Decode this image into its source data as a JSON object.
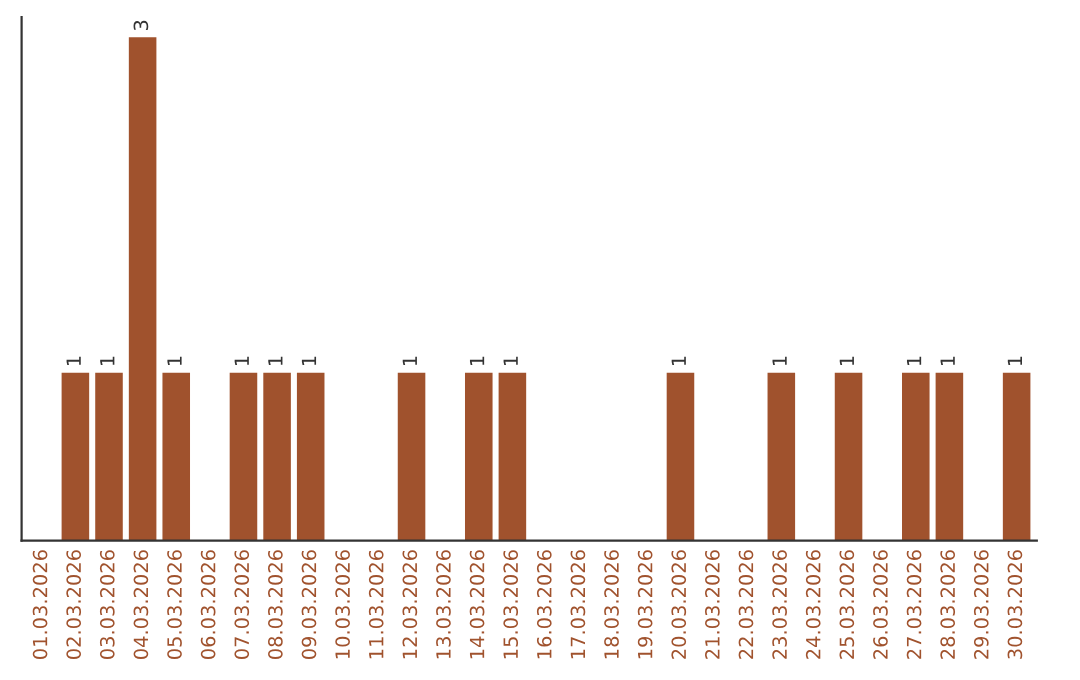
{
  "chart_data": {
    "type": "bar",
    "categories": [
      "01.03.2026",
      "02.03.2026",
      "03.03.2026",
      "04.03.2026",
      "05.03.2026",
      "06.03.2026",
      "07.03.2026",
      "08.03.2026",
      "09.03.2026",
      "10.03.2026",
      "11.03.2026",
      "12.03.2026",
      "13.03.2026",
      "14.03.2026",
      "15.03.2026",
      "16.03.2026",
      "17.03.2026",
      "18.03.2026",
      "19.03.2026",
      "20.03.2026",
      "21.03.2026",
      "22.03.2026",
      "23.03.2026",
      "24.03.2026",
      "25.03.2026",
      "26.03.2026",
      "27.03.2026",
      "28.03.2026",
      "29.03.2026",
      "30.03.2026"
    ],
    "values": [
      0,
      1,
      1,
      3,
      1,
      0,
      1,
      1,
      1,
      0,
      0,
      1,
      0,
      1,
      1,
      0,
      0,
      0,
      0,
      1,
      0,
      0,
      1,
      0,
      1,
      0,
      1,
      1,
      0,
      1
    ],
    "value_labels": [
      null,
      "1",
      "1",
      "3",
      "1",
      null,
      "1",
      "1",
      "1",
      null,
      null,
      "1",
      null,
      "1",
      "1",
      null,
      null,
      null,
      null,
      "1",
      null,
      null,
      "1",
      null,
      "1",
      null,
      "1",
      "1",
      null,
      "1"
    ],
    "color": "#a0522d",
    "tick_labels": "x",
    "grid": false
  }
}
